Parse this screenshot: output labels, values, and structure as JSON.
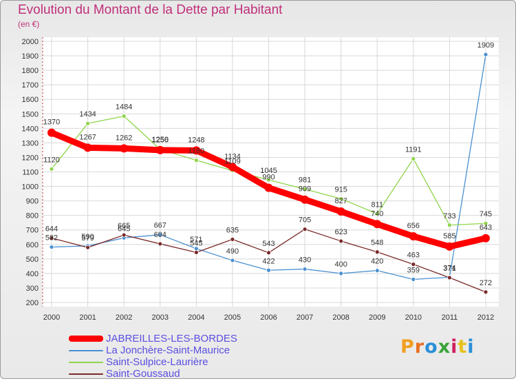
{
  "title": "Evolution du Montant de la Dette par Habitant",
  "subtitle": "(en €)",
  "logo": {
    "text": "Proxiti",
    "letter_colors": [
      "#f0a020",
      "#e87020",
      "#2a8fd8",
      "#3aa33a",
      "#d02060",
      "#e8c020",
      "#2a8fd8"
    ]
  },
  "chart_data": {
    "type": "line",
    "x": [
      "2000",
      "2001",
      "2002",
      "2003",
      "2004",
      "2005",
      "2006",
      "2007",
      "2008",
      "2009",
      "2010",
      "2011",
      "2012"
    ],
    "ylim": [
      200,
      2000
    ],
    "yticks": [
      200,
      300,
      400,
      500,
      600,
      700,
      800,
      900,
      1000,
      1100,
      1200,
      1300,
      1400,
      1500,
      1600,
      1700,
      1800,
      1900,
      2000
    ],
    "grid": true,
    "legend_position": "bottom-left",
    "series": [
      {
        "name": "JABREILLES-LES-BORDES",
        "color": "#ff0000",
        "values": [
          1370,
          1267,
          1262,
          1250,
          1248,
          1134,
          990,
          909,
          827,
          740,
          656,
          585,
          643
        ]
      },
      {
        "name": "La Jonchère-Saint-Maurice",
        "color": "#4a90d0",
        "values": [
          582,
          590,
          645,
          667,
          571,
          490,
          422,
          430,
          400,
          420,
          359,
          374,
          1909
        ]
      },
      {
        "name": "Saint-Sulpice-Laurière",
        "color": "#8fd44a",
        "values": [
          1120,
          1434,
          1484,
          1256,
          1180,
          1109,
          1045,
          981,
          915,
          811,
          1191,
          733,
          745
        ]
      },
      {
        "name": "Saint-Goussaud",
        "color": "#7a2a2a",
        "values": [
          644,
          579,
          665,
          604,
          545,
          635,
          543,
          705,
          623,
          548,
          463,
          371,
          272
        ]
      }
    ]
  }
}
